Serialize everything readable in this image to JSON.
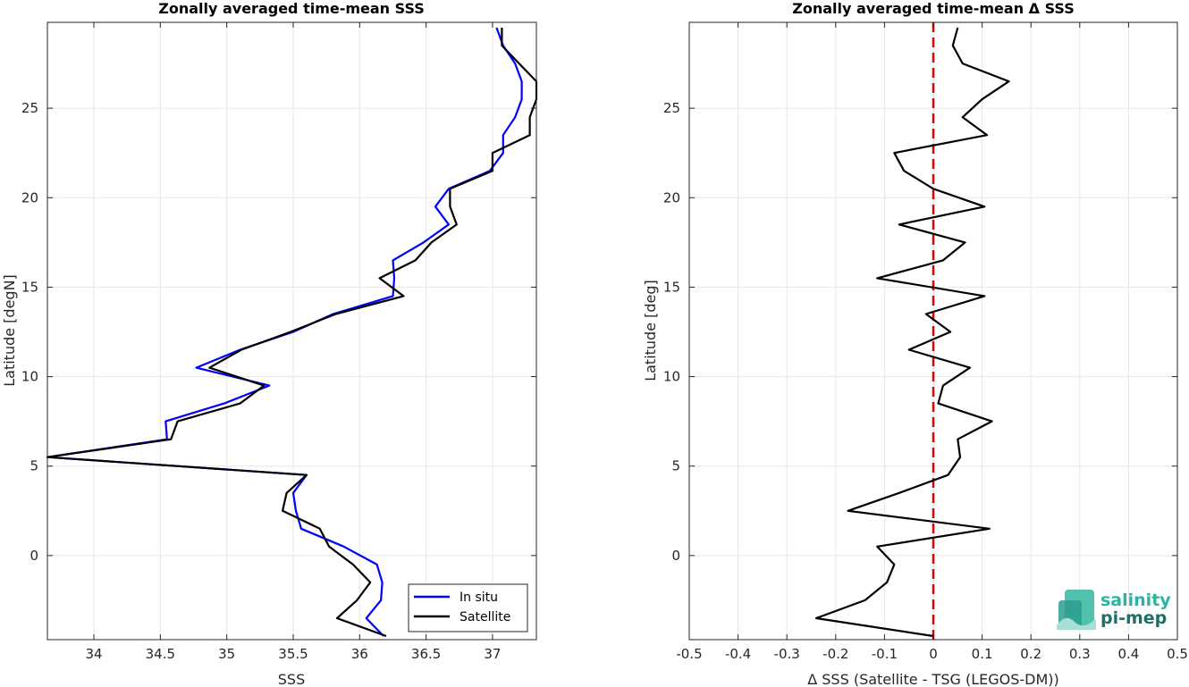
{
  "chart_data": [
    {
      "type": "line",
      "title": "Zonally averaged time-mean SSS",
      "xlabel": "SSS",
      "ylabel": "Latitude [degN]",
      "xlim": [
        33.65,
        37.33
      ],
      "ylim": [
        -4.7,
        29.8
      ],
      "xticks": [
        "34",
        "34.5",
        "35",
        "35.5",
        "36",
        "36.5",
        "37"
      ],
      "yticks": [
        "0",
        "5",
        "10",
        "15",
        "20",
        "25"
      ],
      "grid": true,
      "legend": "bottom-right",
      "series": [
        {
          "name": "In situ",
          "color": "#0000ff",
          "y": [
            29.5,
            28.5,
            27.5,
            26.5,
            25.5,
            24.5,
            23.5,
            22.5,
            21.5,
            20.5,
            19.5,
            18.5,
            17.5,
            16.5,
            15.5,
            14.5,
            13.5,
            12.5,
            11.5,
            10.5,
            9.5,
            8.5,
            7.5,
            6.5,
            5.5,
            4.5,
            3.5,
            2.5,
            1.5,
            0.5,
            -0.5,
            -1.5,
            -2.5,
            -3.5,
            -4.5
          ],
          "x": [
            37.03,
            37.08,
            37.17,
            37.22,
            37.22,
            37.17,
            37.08,
            37.08,
            36.98,
            36.67,
            36.57,
            36.67,
            36.48,
            36.25,
            36.26,
            36.25,
            35.8,
            35.5,
            35.1,
            34.77,
            35.32,
            34.98,
            34.54,
            34.55,
            33.65,
            35.6,
            35.5,
            35.52,
            35.56,
            35.88,
            36.13,
            36.17,
            36.16,
            36.05,
            36.18
          ]
        },
        {
          "name": "Satellite",
          "color": "#000000",
          "y": [
            29.5,
            28.5,
            27.5,
            26.5,
            25.5,
            24.5,
            23.5,
            22.5,
            21.5,
            20.5,
            19.5,
            18.5,
            17.5,
            16.5,
            15.5,
            14.5,
            13.5,
            12.5,
            11.5,
            10.5,
            9.5,
            8.5,
            7.5,
            6.5,
            5.5,
            4.5,
            3.5,
            2.5,
            1.5,
            0.5,
            -0.5,
            -1.5,
            -2.5,
            -3.5,
            -4.5
          ],
          "x": [
            37.07,
            37.07,
            37.2,
            37.33,
            37.33,
            37.28,
            37.28,
            37.0,
            37.0,
            36.68,
            36.68,
            36.73,
            36.54,
            36.42,
            36.15,
            36.33,
            35.82,
            35.48,
            35.11,
            34.87,
            35.28,
            35.1,
            34.63,
            34.58,
            33.65,
            35.6,
            35.45,
            35.42,
            35.7,
            35.77,
            35.95,
            36.08,
            35.98,
            35.83,
            36.2
          ]
        }
      ]
    },
    {
      "type": "line",
      "title": "Zonally averaged time-mean Δ SSS",
      "xlabel": "Δ SSS (Satellite - TSG (LEGOS-DM))",
      "ylabel": "Latitude [deg]",
      "xlim": [
        -0.5,
        0.5
      ],
      "ylim": [
        -4.7,
        29.8
      ],
      "xticks": [
        "-0.5",
        "-0.4",
        "-0.3",
        "-0.2",
        "-0.1",
        "0",
        "0.1",
        "0.2",
        "0.3",
        "0.4",
        "0.5"
      ],
      "yticks": [
        "0",
        "5",
        "10",
        "15",
        "20",
        "25"
      ],
      "grid": true,
      "reference_line": {
        "x": 0,
        "color": "#e00000",
        "style": "dashed"
      },
      "series": [
        {
          "color": "#000000",
          "y": [
            29.5,
            28.5,
            27.5,
            26.5,
            25.5,
            24.5,
            23.5,
            22.5,
            21.5,
            20.5,
            19.5,
            18.5,
            17.5,
            16.5,
            15.5,
            14.5,
            13.5,
            12.5,
            11.5,
            10.5,
            9.5,
            8.5,
            7.5,
            6.5,
            5.5,
            4.5,
            3.5,
            2.5,
            1.5,
            0.5,
            -0.5,
            -1.5,
            -2.5,
            -3.5,
            -4.5
          ],
          "x": [
            0.05,
            0.04,
            0.06,
            0.155,
            0.1,
            0.06,
            0.11,
            -0.08,
            -0.06,
            0.0,
            0.105,
            -0.07,
            0.065,
            0.02,
            -0.115,
            0.105,
            -0.015,
            0.035,
            -0.05,
            0.075,
            0.02,
            0.01,
            0.12,
            0.05,
            0.055,
            0.03,
            -0.07,
            -0.175,
            0.115,
            -0.115,
            -0.08,
            -0.095,
            -0.14,
            -0.24,
            0.0
          ]
        }
      ]
    }
  ],
  "logo": {
    "line1": "salinity",
    "line2": "pi-mep"
  }
}
